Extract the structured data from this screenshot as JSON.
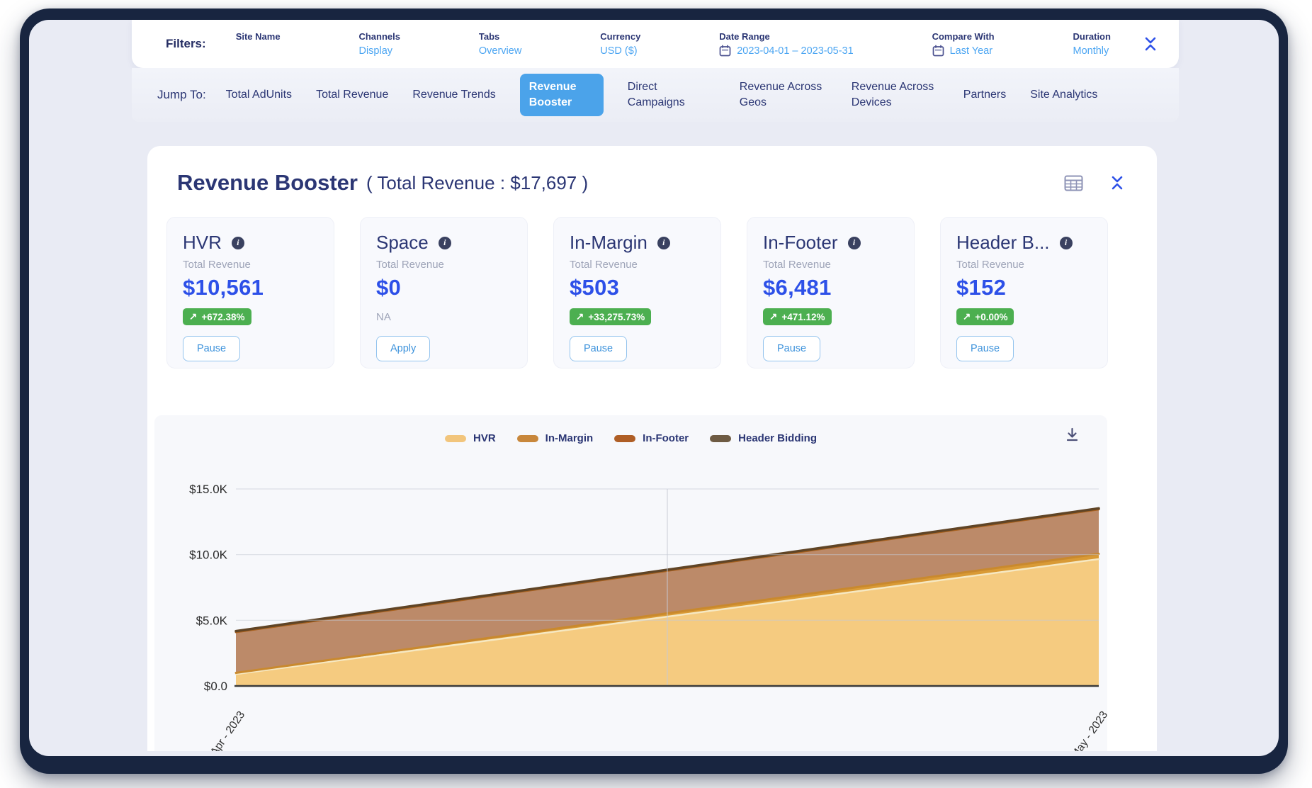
{
  "filters": {
    "label": "Filters:",
    "items": [
      {
        "label": "Site Name",
        "value": ""
      },
      {
        "label": "Channels",
        "value": "Display"
      },
      {
        "label": "Tabs",
        "value": "Overview"
      },
      {
        "label": "Currency",
        "value": "USD ($)"
      },
      {
        "label": "Date Range",
        "value": "2023-04-01 – 2023-05-31",
        "icon": "calendar"
      },
      {
        "label": "Compare With",
        "value": "Last Year",
        "icon": "calendar"
      },
      {
        "label": "Duration",
        "value": "Monthly"
      }
    ]
  },
  "nav": {
    "label": "Jump To:",
    "tabs": [
      {
        "label": "Total AdUnits",
        "active": false
      },
      {
        "label": "Total Revenue",
        "active": false
      },
      {
        "label": "Revenue Trends",
        "active": false
      },
      {
        "label": "Revenue Booster",
        "active": true
      },
      {
        "label": "Direct Campaigns",
        "active": false
      },
      {
        "label": "Revenue Across Geos",
        "active": false
      },
      {
        "label": "Revenue Across Devices",
        "active": false
      },
      {
        "label": "Partners",
        "active": false
      },
      {
        "label": "Site Analytics",
        "active": false
      }
    ]
  },
  "main": {
    "title": "Revenue Booster",
    "subtitle": "( Total Revenue : $17,697 )",
    "cards": [
      {
        "name": "HVR",
        "metric_label": "Total Revenue",
        "amount": "$10,561",
        "change": "+672.38%",
        "na": null,
        "action": "Pause"
      },
      {
        "name": "Space",
        "metric_label": "Total Revenue",
        "amount": "$0",
        "change": null,
        "na": "NA",
        "action": "Apply"
      },
      {
        "name": "In-Margin",
        "metric_label": "Total Revenue",
        "amount": "$503",
        "change": "+33,275.73%",
        "na": null,
        "action": "Pause"
      },
      {
        "name": "In-Footer",
        "metric_label": "Total Revenue",
        "amount": "$6,481",
        "change": "+471.12%",
        "na": null,
        "action": "Pause"
      },
      {
        "name": "Header B...",
        "metric_label": "Total Revenue",
        "amount": "$152",
        "change": "+0.00%",
        "na": null,
        "action": "Pause"
      }
    ]
  },
  "icons": {
    "trend_arrow": "↗",
    "info_glyph": "i"
  },
  "colors": {
    "frame_navy": "#182540",
    "page_bg": "#E9EBF4",
    "text_dark_indigo": "#2B3674",
    "link_blue": "#4BA5F2",
    "active_tab_blue": "#4BA3EA",
    "amount_blue": "#2D50E8",
    "badge_green": "#4CAF50"
  },
  "chart_data": {
    "type": "area",
    "stacked": true,
    "x": [
      "Apr - 2023",
      "May - 2023"
    ],
    "series": [
      {
        "name": "HVR",
        "values": [
          900,
          9661
        ],
        "fill": "#F5CB80",
        "stroke": "#F6E8C2",
        "stroke_width": 2.5,
        "legend_color": "#F2C57C"
      },
      {
        "name": "In-Margin",
        "values": [
          100,
          403
        ],
        "fill": "#D99A35",
        "stroke": "#C9892E",
        "stroke_width": 3,
        "legend_color": "#C8873B"
      },
      {
        "name": "In-Footer",
        "values": [
          3100,
          3381
        ],
        "fill": "#BC8A69",
        "stroke": "#A9611D",
        "stroke_width": 3,
        "legend_color": "#AF5E25"
      },
      {
        "name": "Header Bidding",
        "values": [
          76,
          76
        ],
        "fill": "#6F4E2E",
        "stroke": "#5F4426",
        "stroke_width": 3.5,
        "legend_color": "#6E5B43"
      }
    ],
    "yticks": [
      {
        "label": "$0.0",
        "value": 0
      },
      {
        "label": "$5.0K",
        "value": 5000
      },
      {
        "label": "$10.0K",
        "value": 10000
      },
      {
        "label": "$15.0K",
        "value": 15000
      }
    ],
    "ylim": [
      0,
      15800
    ],
    "grid": true,
    "legend_position": "top-center",
    "totals_by_month": [
      4176,
      13521
    ],
    "grand_total": 17697
  }
}
